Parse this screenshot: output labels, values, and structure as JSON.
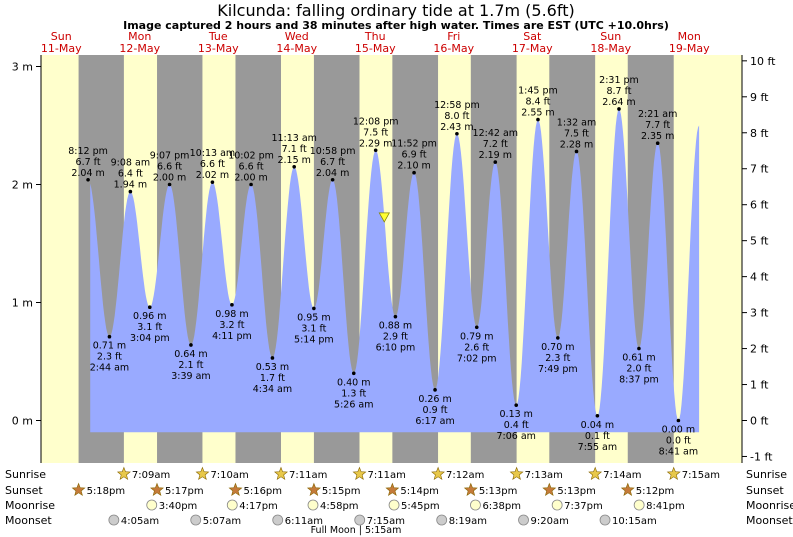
{
  "title": "Kilcunda: falling  ordinary tide at 1.7m (5.6ft)",
  "subtitle": "Image captured 2 hours and 38 minutes after high water. Times are EST (UTC +10.0hrs)",
  "colors": {
    "day": "#ffffcc",
    "night": "#999999",
    "water": "#99aaff",
    "day_label": "#cc0000",
    "current_marker": "#ffff33"
  },
  "chart_data": {
    "type": "area",
    "days": [
      {
        "weekday": "Sun",
        "date": "11-May"
      },
      {
        "weekday": "Mon",
        "date": "12-May"
      },
      {
        "weekday": "Tue",
        "date": "13-May"
      },
      {
        "weekday": "Wed",
        "date": "14-May"
      },
      {
        "weekday": "Thu",
        "date": "15-May"
      },
      {
        "weekday": "Fri",
        "date": "16-May"
      },
      {
        "weekday": "Sat",
        "date": "17-May"
      },
      {
        "weekday": "Sun",
        "date": "18-May"
      },
      {
        "weekday": "Mon",
        "date": "19-May"
      }
    ],
    "y_left": {
      "unit": "m",
      "range": [
        -0.1,
        3.0
      ],
      "ticks": [
        {
          "v": 0,
          "label": "0 m"
        },
        {
          "v": 1,
          "label": "1 m"
        },
        {
          "v": 2,
          "label": "2 m"
        },
        {
          "v": 3,
          "label": "3 m"
        }
      ]
    },
    "y_right": {
      "unit": "ft",
      "range": [
        -1,
        10
      ],
      "ticks": [
        "-1 ft",
        "0 ft",
        "1 ft",
        "2 ft",
        "3 ft",
        "4 ft",
        "5 ft",
        "6 ft",
        "7 ft",
        "8 ft",
        "9 ft",
        "10 ft"
      ]
    },
    "tides": [
      {
        "type": "high",
        "day": 0,
        "time": "8:12 pm",
        "ft": "6.7 ft",
        "m": "2.04 m",
        "height": 2.04
      },
      {
        "type": "low",
        "day": 1,
        "time": "2:44 am",
        "ft": "2.3 ft",
        "m": "0.71 m",
        "height": 0.71
      },
      {
        "type": "high",
        "day": 1,
        "time": "9:08 am",
        "ft": "6.4 ft",
        "m": "1.94 m",
        "height": 1.94
      },
      {
        "type": "low",
        "day": 1,
        "time": "3:04 pm",
        "ft": "3.1 ft",
        "m": "0.96 m",
        "height": 0.96
      },
      {
        "type": "high",
        "day": 1,
        "time": "9:07 pm",
        "ft": "6.6 ft",
        "m": "2.00 m",
        "height": 2.0
      },
      {
        "type": "low",
        "day": 2,
        "time": "3:39 am",
        "ft": "2.1 ft",
        "m": "0.64 m",
        "height": 0.64
      },
      {
        "type": "high",
        "day": 2,
        "time": "10:13 am",
        "ft": "6.6 ft",
        "m": "2.02 m",
        "height": 2.02
      },
      {
        "type": "low",
        "day": 2,
        "time": "4:11 pm",
        "ft": "3.2 ft",
        "m": "0.98 m",
        "height": 0.98
      },
      {
        "type": "high",
        "day": 2,
        "time": "10:02 pm",
        "ft": "6.6 ft",
        "m": "2.00 m",
        "height": 2.0
      },
      {
        "type": "low",
        "day": 3,
        "time": "4:34 am",
        "ft": "1.7 ft",
        "m": "0.53 m",
        "height": 0.53
      },
      {
        "type": "high",
        "day": 3,
        "time": "11:13 am",
        "ft": "7.1 ft",
        "m": "2.15 m",
        "height": 2.15
      },
      {
        "type": "low",
        "day": 3,
        "time": "5:14 pm",
        "ft": "3.1 ft",
        "m": "0.95 m",
        "height": 0.95
      },
      {
        "type": "high",
        "day": 3,
        "time": "10:58 pm",
        "ft": "6.7 ft",
        "m": "2.04 m",
        "height": 2.04
      },
      {
        "type": "low",
        "day": 4,
        "time": "5:26 am",
        "ft": "1.3 ft",
        "m": "0.40 m",
        "height": 0.4
      },
      {
        "type": "high",
        "day": 4,
        "time": "12:08 pm",
        "ft": "7.5 ft",
        "m": "2.29 m",
        "height": 2.29
      },
      {
        "type": "low",
        "day": 4,
        "time": "6:10 pm",
        "ft": "2.9 ft",
        "m": "0.88 m",
        "height": 0.88
      },
      {
        "type": "high",
        "day": 4,
        "time": "11:52 pm",
        "ft": "6.9 ft",
        "m": "2.10 m",
        "height": 2.1
      },
      {
        "type": "low",
        "day": 5,
        "time": "6:17 am",
        "ft": "0.9 ft",
        "m": "0.26 m",
        "height": 0.26
      },
      {
        "type": "high",
        "day": 5,
        "time": "12:58 pm",
        "ft": "8.0 ft",
        "m": "2.43 m",
        "height": 2.43
      },
      {
        "type": "low",
        "day": 5,
        "time": "7:02 pm",
        "ft": "2.6 ft",
        "m": "0.79 m",
        "height": 0.79
      },
      {
        "type": "high",
        "day": 6,
        "time": "12:42 am",
        "ft": "7.2 ft",
        "m": "2.19 m",
        "height": 2.19
      },
      {
        "type": "low",
        "day": 6,
        "time": "7:06 am",
        "ft": "0.4 ft",
        "m": "0.13 m",
        "height": 0.13
      },
      {
        "type": "high",
        "day": 6,
        "time": "1:45 pm",
        "ft": "8.4 ft",
        "m": "2.55 m",
        "height": 2.55
      },
      {
        "type": "low",
        "day": 6,
        "time": "7:49 pm",
        "ft": "2.3 ft",
        "m": "0.70 m",
        "height": 0.7
      },
      {
        "type": "high",
        "day": 7,
        "time": "1:32 am",
        "ft": "7.5 ft",
        "m": "2.28 m",
        "height": 2.28
      },
      {
        "type": "low",
        "day": 7,
        "time": "7:55 am",
        "ft": "0.1 ft",
        "m": "0.04 m",
        "height": 0.04
      },
      {
        "type": "high",
        "day": 7,
        "time": "2:31 pm",
        "ft": "8.7 ft",
        "m": "2.64 m",
        "height": 2.64
      },
      {
        "type": "low",
        "day": 7,
        "time": "8:37 pm",
        "ft": "2.0 ft",
        "m": "0.61 m",
        "height": 0.61
      },
      {
        "type": "high",
        "day": 8,
        "time": "2:21 am",
        "ft": "7.7 ft",
        "m": "2.35 m",
        "height": 2.35
      },
      {
        "type": "low",
        "day": 8,
        "time": "8:41 am",
        "ft": "0.0 ft",
        "m": "0.00 m",
        "height": 0.0
      }
    ],
    "sun": [
      {
        "day": 0,
        "sunset": "5:18pm"
      },
      {
        "day": 1,
        "sunrise": "7:09am",
        "sunset": "5:17pm"
      },
      {
        "day": 2,
        "sunrise": "7:10am",
        "sunset": "5:16pm"
      },
      {
        "day": 3,
        "sunrise": "7:11am",
        "sunset": "5:15pm"
      },
      {
        "day": 4,
        "sunrise": "7:11am",
        "sunset": "5:14pm"
      },
      {
        "day": 5,
        "sunrise": "7:12am",
        "sunset": "5:13pm"
      },
      {
        "day": 6,
        "sunrise": "7:13am",
        "sunset": "5:13pm"
      },
      {
        "day": 7,
        "sunrise": "7:14am",
        "sunset": "5:12pm"
      },
      {
        "day": 8,
        "sunrise": "7:15am"
      }
    ],
    "moon": {
      "moonrise": [
        {
          "day": 1,
          "time": "3:40pm"
        },
        {
          "day": 2,
          "time": "4:17pm"
        },
        {
          "day": 3,
          "time": "4:58pm"
        },
        {
          "day": 4,
          "time": "5:45pm"
        },
        {
          "day": 5,
          "time": "6:38pm"
        },
        {
          "day": 6,
          "time": "7:37pm"
        },
        {
          "day": 7,
          "time": "8:41pm"
        }
      ],
      "moonset": [
        {
          "day": 1,
          "time": "4:05am"
        },
        {
          "day": 2,
          "time": "5:07am"
        },
        {
          "day": 3,
          "time": "6:11am"
        },
        {
          "day": 4,
          "time": "7:15am"
        },
        {
          "day": 5,
          "time": "8:19am"
        },
        {
          "day": 6,
          "time": "9:20am"
        },
        {
          "day": 7,
          "time": "10:15am"
        }
      ],
      "phase_note": "Full Moon | 5:15am"
    },
    "row_labels": {
      "sunrise": "Sunrise",
      "sunset": "Sunset",
      "moonrise": "Moonrise",
      "moonset": "Moonset"
    },
    "current": {
      "day": 4,
      "time": "2:46 pm",
      "height": 1.7
    }
  }
}
